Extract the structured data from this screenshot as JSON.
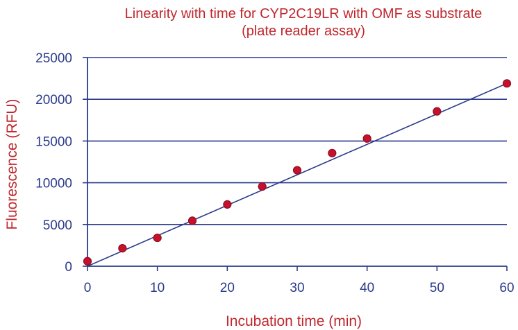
{
  "colors": {
    "title": "#c0272d",
    "axis": "#2a3a8c",
    "grid": "#2a3a8c",
    "marker_fill": "#c8102e",
    "marker_edge": "#8a1020",
    "line": "#2a3a8c"
  },
  "chart_data": {
    "type": "scatter",
    "title_line1": "Linearity with time for CYP2C19LR with OMF as substrate",
    "title_line2": "(plate reader assay)",
    "xlabel": "Incubation time (min)",
    "ylabel": "Fluorescence (RFU)",
    "xlim": [
      0,
      60
    ],
    "ylim": [
      0,
      25000
    ],
    "xticks": [
      0,
      10,
      20,
      30,
      40,
      50,
      60
    ],
    "yticks": [
      0,
      5000,
      10000,
      15000,
      20000,
      25000
    ],
    "grid": "horizontal",
    "series": [
      {
        "x": [
          0,
          5,
          10,
          15,
          20,
          25,
          30,
          35,
          40,
          50,
          60
        ],
        "y": [
          600,
          2150,
          3400,
          5450,
          7400,
          9550,
          11500,
          13550,
          15300,
          18550,
          21900
        ]
      }
    ],
    "trendline": {
      "x": [
        0,
        60
      ],
      "y": [
        0,
        21900
      ]
    }
  }
}
